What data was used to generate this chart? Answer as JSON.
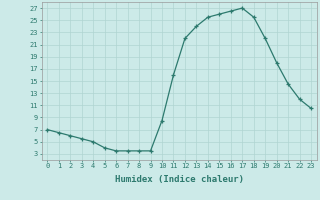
{
  "x": [
    0,
    1,
    2,
    3,
    4,
    5,
    6,
    7,
    8,
    9,
    10,
    11,
    12,
    13,
    14,
    15,
    16,
    17,
    18,
    19,
    20,
    21,
    22,
    23
  ],
  "y": [
    7,
    6.5,
    6,
    5.5,
    5,
    4,
    3.5,
    3.5,
    3.5,
    3.5,
    8.5,
    16,
    22,
    24,
    25.5,
    26,
    26.5,
    27,
    25.5,
    22,
    18,
    14.5,
    12,
    10.5
  ],
  "line_color": "#2d7a6e",
  "marker": "+",
  "marker_size": 3,
  "line_width": 0.9,
  "xlabel": "Humidex (Indice chaleur)",
  "xlim": [
    -0.5,
    23.5
  ],
  "ylim": [
    2,
    28
  ],
  "yticks": [
    3,
    5,
    7,
    9,
    11,
    13,
    15,
    17,
    19,
    21,
    23,
    25,
    27
  ],
  "xticks": [
    0,
    1,
    2,
    3,
    4,
    5,
    6,
    7,
    8,
    9,
    10,
    11,
    12,
    13,
    14,
    15,
    16,
    17,
    18,
    19,
    20,
    21,
    22,
    23
  ],
  "bg_color": "#cceae8",
  "grid_color": "#b0d5d2",
  "tick_fontsize": 5,
  "xlabel_fontsize": 6.5
}
